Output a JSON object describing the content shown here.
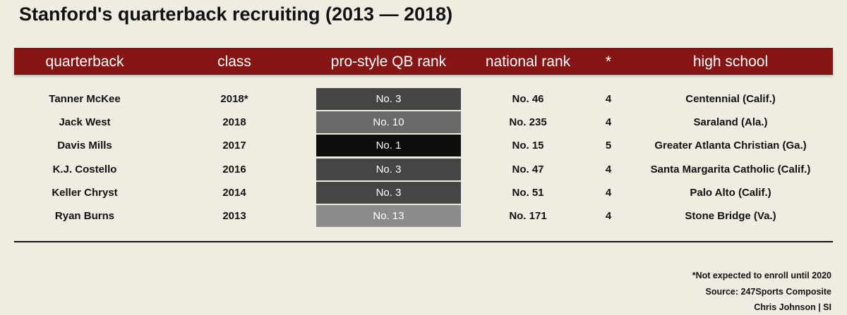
{
  "title": "Stanford's quarterback recruiting (2013 — 2018)",
  "chart_data": {
    "type": "table",
    "title": "Stanford's quarterback recruiting (2013 — 2018)",
    "columns": [
      "quarterback",
      "class",
      "pro-style QB rank",
      "national rank",
      "*",
      "high school"
    ],
    "rows": [
      {
        "quarterback": "Tanner McKee",
        "class": "2018*",
        "pro_style_rank": "No. 3",
        "rank_value": 3,
        "national_rank": "No. 46",
        "stars": "4",
        "high_school": "Centennial (Calif.)"
      },
      {
        "quarterback": "Jack West",
        "class": "2018",
        "pro_style_rank": "No. 10",
        "rank_value": 10,
        "national_rank": "No. 235",
        "stars": "4",
        "high_school": "Saraland (Ala.)"
      },
      {
        "quarterback": "Davis Mills",
        "class": "2017",
        "pro_style_rank": "No. 1",
        "rank_value": 1,
        "national_rank": "No. 15",
        "stars": "5",
        "high_school": "Greater Atlanta Christian (Ga.)"
      },
      {
        "quarterback": "K.J. Costello",
        "class": "2016",
        "pro_style_rank": "No. 3",
        "rank_value": 3,
        "national_rank": "No. 47",
        "stars": "4",
        "high_school": "Santa Margarita Catholic (Calif.)"
      },
      {
        "quarterback": "Keller Chryst",
        "class": "2014",
        "pro_style_rank": "No. 3",
        "rank_value": 3,
        "national_rank": "No. 51",
        "stars": "4",
        "high_school": "Palo Alto (Calif.)"
      },
      {
        "quarterback": "Ryan Burns",
        "class": "2013",
        "pro_style_rank": "No. 13",
        "rank_value": 13,
        "national_rank": "No. 171",
        "stars": "4",
        "high_school": "Stone Bridge (Va.)"
      }
    ]
  },
  "colors": {
    "header_bg": "#861516",
    "background": "#efece2",
    "rank_1": "#0d0d0d",
    "rank_3": "#454545",
    "rank_10": "#6a6a6a",
    "rank_13": "#8c8c8c"
  },
  "footer": {
    "note": "*Not expected to enroll until 2020",
    "source": "Source: 247Sports Composite",
    "credit": "Chris Johnson | SI"
  }
}
